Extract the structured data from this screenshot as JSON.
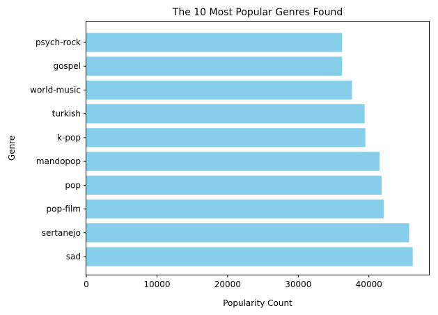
{
  "chart_data": {
    "type": "bar",
    "orientation": "horizontal",
    "title": "The 10 Most Popular Genres Found",
    "xlabel": "Popularity Count",
    "ylabel": "Genre",
    "categories": [
      "psych-rock",
      "gospel",
      "world-music",
      "turkish",
      "k-pop",
      "mandopop",
      "pop",
      "pop-film",
      "sertanejo",
      "sad"
    ],
    "values": [
      36200,
      36200,
      37600,
      39400,
      39500,
      41500,
      41800,
      42100,
      45700,
      46200
    ],
    "xlim": [
      0,
      48500
    ],
    "xticks": [
      0,
      10000,
      20000,
      30000,
      40000
    ],
    "xtick_labels": [
      "0",
      "10000",
      "20000",
      "30000",
      "40000"
    ],
    "bar_color": "#87ceeb",
    "grid": false,
    "legend": "none"
  }
}
